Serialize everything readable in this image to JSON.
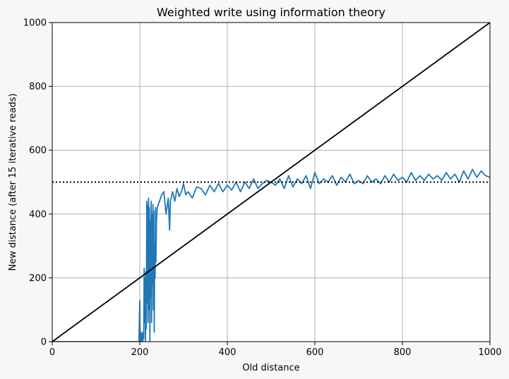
{
  "chart_data": {
    "type": "line",
    "title": "Weighted write using information theory",
    "xlabel": "Old distance",
    "ylabel": "New distance (after 15 iterative reads)",
    "xlim": [
      0,
      1000
    ],
    "ylim": [
      0,
      1000
    ],
    "xticks": [
      0,
      200,
      400,
      600,
      800,
      1000
    ],
    "yticks": [
      0,
      200,
      400,
      600,
      800,
      1000
    ],
    "xtick_labels": [
      "0",
      "200",
      "400",
      "600",
      "800",
      "1000"
    ],
    "ytick_labels": [
      "0",
      "200",
      "400",
      "600",
      "800",
      "1000"
    ],
    "grid": true,
    "colors": {
      "measured": "#1f77b4",
      "identity": "#000000",
      "threshold": "#000000",
      "grid": "#b0b0b0",
      "background": "#ffffff",
      "figure": "#f7f7f7"
    },
    "series": [
      {
        "style": "solid",
        "color": "#1f77b4",
        "x": [
          0,
          100,
          198,
          200,
          201,
          202,
          203,
          204,
          205,
          206,
          207,
          208,
          209,
          210,
          211,
          212,
          213,
          214,
          215,
          216,
          217,
          218,
          219,
          220,
          221,
          222,
          223,
          224,
          225,
          226,
          227,
          228,
          229,
          230,
          231,
          232,
          233,
          234,
          235,
          236,
          237,
          238,
          240,
          245,
          250,
          255,
          260,
          265,
          268,
          270,
          275,
          280,
          285,
          290,
          295,
          300,
          305,
          310,
          320,
          330,
          340,
          350,
          360,
          370,
          380,
          390,
          400,
          410,
          420,
          430,
          440,
          450,
          460,
          470,
          480,
          490,
          500,
          510,
          520,
          530,
          540,
          550,
          560,
          570,
          580,
          590,
          600,
          610,
          620,
          630,
          640,
          650,
          660,
          670,
          680,
          690,
          700,
          710,
          720,
          730,
          740,
          750,
          760,
          770,
          780,
          790,
          800,
          810,
          820,
          830,
          840,
          850,
          860,
          870,
          880,
          890,
          900,
          910,
          920,
          930,
          940,
          950,
          960,
          970,
          980,
          990,
          1000
        ],
        "y": [
          0,
          0,
          0,
          130,
          0,
          20,
          0,
          30,
          0,
          25,
          0,
          30,
          10,
          230,
          60,
          200,
          0,
          220,
          40,
          440,
          120,
          430,
          60,
          450,
          100,
          420,
          0,
          380,
          140,
          440,
          60,
          400,
          180,
          430,
          100,
          410,
          30,
          300,
          200,
          420,
          250,
          380,
          420,
          440,
          460,
          470,
          400,
          450,
          350,
          440,
          470,
          440,
          480,
          455,
          470,
          495,
          460,
          470,
          450,
          485,
          480,
          460,
          490,
          470,
          495,
          470,
          490,
          475,
          500,
          470,
          500,
          480,
          510,
          480,
          495,
          505,
          500,
          490,
          510,
          480,
          520,
          485,
          510,
          495,
          520,
          480,
          530,
          495,
          510,
          500,
          520,
          490,
          515,
          500,
          525,
          495,
          505,
          495,
          520,
          500,
          510,
          495,
          520,
          500,
          525,
          505,
          515,
          500,
          530,
          505,
          520,
          505,
          525,
          510,
          520,
          505,
          530,
          510,
          525,
          500,
          535,
          510,
          540,
          515,
          535,
          520,
          515
        ]
      },
      {
        "style": "solid",
        "color": "#000000",
        "x": [
          0,
          1000
        ],
        "y": [
          0,
          1000
        ]
      },
      {
        "style": "dotted",
        "color": "#000000",
        "x": [
          0,
          1000
        ],
        "y": [
          500,
          500
        ]
      }
    ]
  }
}
